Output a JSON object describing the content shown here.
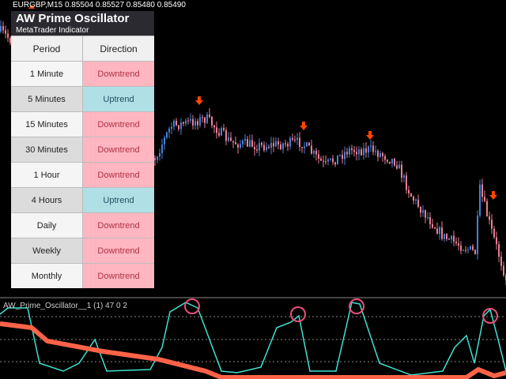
{
  "chart_header": {
    "symbol_line": "EURGBP,M15  0.85504 0.85527 0.85480 0.85490"
  },
  "panel": {
    "title": "AW Prime Oscillator",
    "subtitle": "MetaTrader Indicator"
  },
  "table": {
    "header": [
      "Period",
      "Direction"
    ],
    "rows": [
      {
        "period": "1 Minute",
        "direction": "Downtrend",
        "color": "#ffb6c1"
      },
      {
        "period": "5 Minutes",
        "direction": "Uptrend",
        "color": "#b0e0e6"
      },
      {
        "period": "15 Minutes",
        "direction": "Downtrend",
        "color": "#ffb6c1"
      },
      {
        "period": "30 Minutes",
        "direction": "Downtrend",
        "color": "#ffb6c1"
      },
      {
        "period": "1 Hour",
        "direction": "Downtrend",
        "color": "#ffb6c1"
      },
      {
        "period": "4 Hours",
        "direction": "Uptrend",
        "color": "#b0e0e6"
      },
      {
        "period": "Daily",
        "direction": "Downtrend",
        "color": "#ffb6c1"
      },
      {
        "period": "Weekly",
        "direction": "Downtrend",
        "color": "#ffb6c1"
      },
      {
        "period": "Monthly",
        "direction": "Downtrend",
        "color": "#ffb6c1"
      }
    ]
  },
  "indicator": {
    "label": "AW_Prime_Oscillator__1 (1) 47 0 2"
  }
}
